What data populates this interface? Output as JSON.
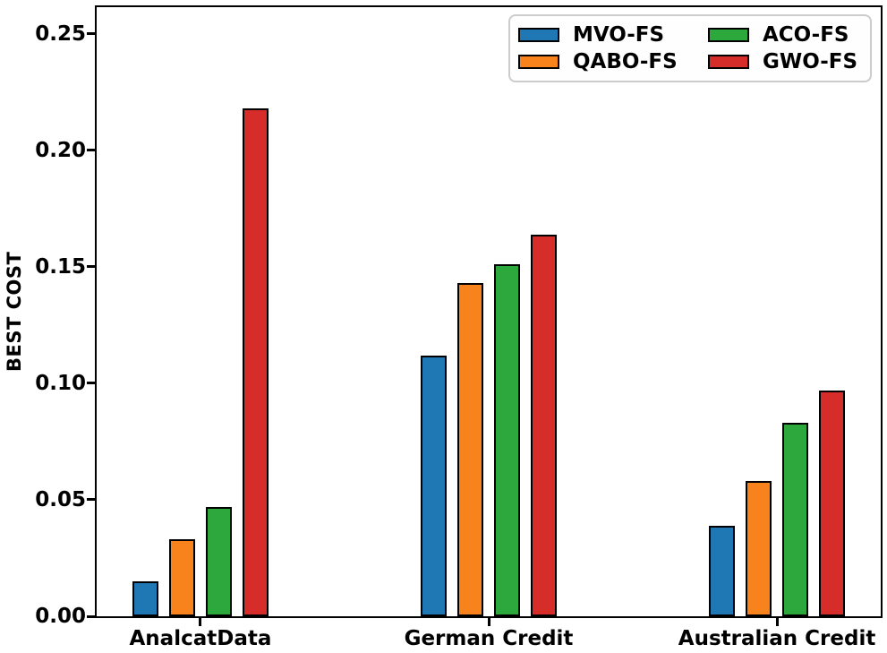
{
  "figure": {
    "background": "#ffffff",
    "text_color": "#000000"
  },
  "chart_data": {
    "type": "bar",
    "title": "",
    "xlabel": "",
    "ylabel": "BEST COST",
    "categories": [
      "AnalcatData",
      "German Credit",
      "Australian Credit"
    ],
    "series": [
      {
        "name": "MVO-FS",
        "color": "#1f77b4",
        "values": [
          0.015,
          0.112,
          0.039
        ]
      },
      {
        "name": "QABO-FS",
        "color": "#f8821c",
        "values": [
          0.033,
          0.143,
          0.058
        ]
      },
      {
        "name": "ACO-FS",
        "color": "#2ca83d",
        "values": [
          0.047,
          0.151,
          0.083
        ]
      },
      {
        "name": "GWO-FS",
        "color": "#d62d2b",
        "values": [
          0.218,
          0.164,
          0.097
        ]
      }
    ],
    "yticks": [
      0.0,
      0.05,
      0.1,
      0.15,
      0.2,
      0.25
    ],
    "ytick_labels": [
      "0.00",
      "0.05",
      "0.10",
      "0.15",
      "0.20",
      "0.25"
    ],
    "ylim": [
      0,
      0.2615
    ],
    "xlim": [
      -0.36,
      2.36
    ],
    "grid": false,
    "bar_edge_color": "#000000",
    "bar_width_frac": 0.0331,
    "bar_step_frac": 0.0468,
    "legend": {
      "position": "upper right",
      "columns": 2,
      "fill_order": "column-major",
      "entries": [
        "MVO-FS",
        "QABO-FS",
        "ACO-FS",
        "GWO-FS"
      ]
    }
  }
}
